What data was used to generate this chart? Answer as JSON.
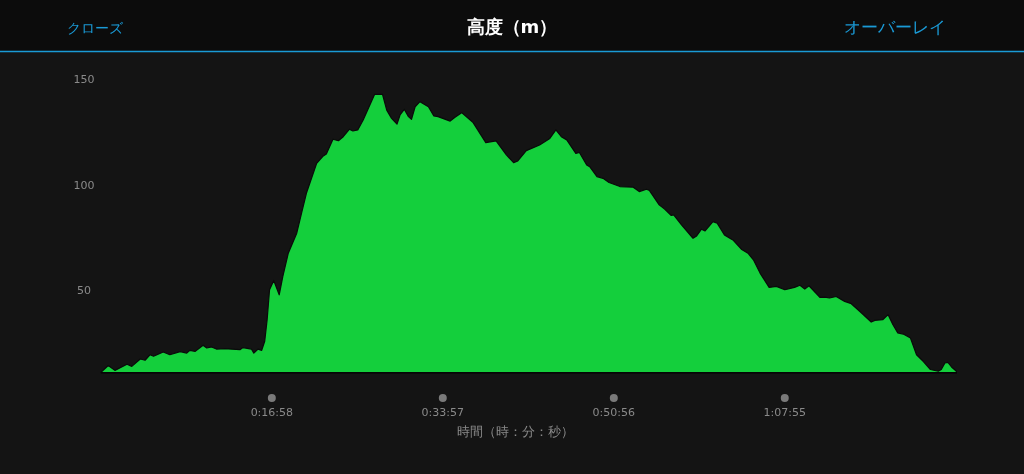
{
  "chart_data": {
    "type": "area",
    "title": "高度（m）",
    "xlabel": "時間（時：分：秒）",
    "annotations": [
      "クローズ",
      "オーバーレイ"
    ],
    "xlim": [
      0,
      1.417
    ],
    "ylim": [
      11,
      150
    ],
    "yticks": [
      50,
      100,
      150
    ],
    "xticks": [
      {
        "value": 0.2828,
        "label": "0:16:58"
      },
      {
        "value": 0.5658,
        "label": "0:33:57"
      },
      {
        "value": 0.8489,
        "label": "0:50:56"
      },
      {
        "value": 1.1319,
        "label": "1:07:55"
      }
    ],
    "grid": false,
    "series": [
      {
        "color": "#14cf3c",
        "x": [
          0,
          0.012,
          0.023,
          0.043,
          0.051,
          0.065,
          0.073,
          0.081,
          0.087,
          0.103,
          0.114,
          0.131,
          0.142,
          0.147,
          0.156,
          0.169,
          0.175,
          0.183,
          0.191,
          0.205,
          0.23,
          0.235,
          0.249,
          0.253,
          0.26,
          0.266,
          0.271,
          0.275,
          0.279,
          0.286,
          0.295,
          0.301,
          0.31,
          0.324,
          0.332,
          0.34,
          0.357,
          0.368,
          0.373,
          0.384,
          0.393,
          0.401,
          0.411,
          0.417,
          0.425,
          0.434,
          0.453,
          0.466,
          0.473,
          0.481,
          0.49,
          0.495,
          0.502,
          0.509,
          0.514,
          0.52,
          0.528,
          0.542,
          0.551,
          0.558,
          0.578,
          0.586,
          0.597,
          0.616,
          0.637,
          0.654,
          0.671,
          0.683,
          0.69,
          0.704,
          0.726,
          0.743,
          0.753,
          0.762,
          0.771,
          0.786,
          0.792,
          0.804,
          0.809,
          0.821,
          0.831,
          0.841,
          0.859,
          0.881,
          0.891,
          0.903,
          0.908,
          0.924,
          0.933,
          0.944,
          0.948,
          0.961,
          0.98,
          0.986,
          0.994,
          1.0,
          1.013,
          1.02,
          1.032,
          1.041,
          1.046,
          1.06,
          1.071,
          1.08,
          1.091,
          1.106,
          1.118,
          1.132,
          1.148,
          1.157,
          1.165,
          1.172,
          1.19,
          1.198,
          1.206,
          1.217,
          1.231,
          1.242,
          1.259,
          1.275,
          1.281,
          1.294,
          1.303,
          1.311,
          1.319,
          1.328,
          1.34,
          1.35,
          1.361,
          1.373,
          1.386,
          1.391,
          1.397,
          1.402,
          1.408,
          1.416
        ],
        "values": [
          11.2,
          14.4,
          12.1,
          15.0,
          14.0,
          17.5,
          16.9,
          19.5,
          18.8,
          20.8,
          19.5,
          21.0,
          20.3,
          21.6,
          21.1,
          24.0,
          22.7,
          23.2,
          22.2,
          22.4,
          21.9,
          22.9,
          22.2,
          20.3,
          22.2,
          21.6,
          25.9,
          36.1,
          50.3,
          54.7,
          47.9,
          56.6,
          67.6,
          77.1,
          86.6,
          96.0,
          110.2,
          113.7,
          114.6,
          121.6,
          120.9,
          122.8,
          126.3,
          125.5,
          126.0,
          130.7,
          142.9,
          142.9,
          135.4,
          131.5,
          128.8,
          133.1,
          135.8,
          132.3,
          131.0,
          137.0,
          139.4,
          137.0,
          132.6,
          132.3,
          130.2,
          132.0,
          134.2,
          129.5,
          120.0,
          120.8,
          114.2,
          110.5,
          111.3,
          116.2,
          118.9,
          122.0,
          126.0,
          122.8,
          121.3,
          114.9,
          115.3,
          109.4,
          108.6,
          103.9,
          103.1,
          101.1,
          99.2,
          98.9,
          96.8,
          97.9,
          97.3,
          90.5,
          88.5,
          85.5,
          85.8,
          81.0,
          74.7,
          75.8,
          79.0,
          78.2,
          82.6,
          81.8,
          76.3,
          74.7,
          73.9,
          69.5,
          67.6,
          64.5,
          58.2,
          51.4,
          51.9,
          50.3,
          51.4,
          52.4,
          50.6,
          52.2,
          46.7,
          46.8,
          46.4,
          47.1,
          44.8,
          43.7,
          39.3,
          35.0,
          35.8,
          36.1,
          38.5,
          33.7,
          29.8,
          29.3,
          27.4,
          19.5,
          16.4,
          12.5,
          11.7,
          12.5,
          15.6,
          15.9,
          13.7,
          11.7
        ]
      }
    ]
  }
}
